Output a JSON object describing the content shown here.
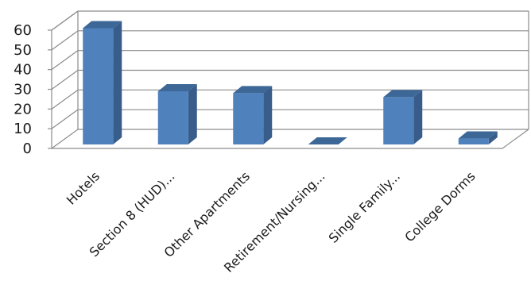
{
  "chart_data": {
    "type": "bar",
    "title": "",
    "xlabel": "",
    "ylabel": "",
    "categories": [
      "Hotels",
      "Section 8 (HUD)...",
      "Other Apartments",
      "Retirement/Nursing...",
      "Single Family...",
      "College Dorms"
    ],
    "values": [
      59,
      27,
      26,
      0,
      24,
      3
    ],
    "ylim": [
      0,
      60
    ],
    "yticks": [
      0,
      10,
      20,
      30,
      40,
      50,
      60
    ],
    "grid": true,
    "legend": "none",
    "style": "3d-column",
    "colors": {
      "front": "#4f81bd",
      "side": "#385d8a",
      "top": "#3c6797",
      "grid": "#8c8c8c"
    }
  }
}
